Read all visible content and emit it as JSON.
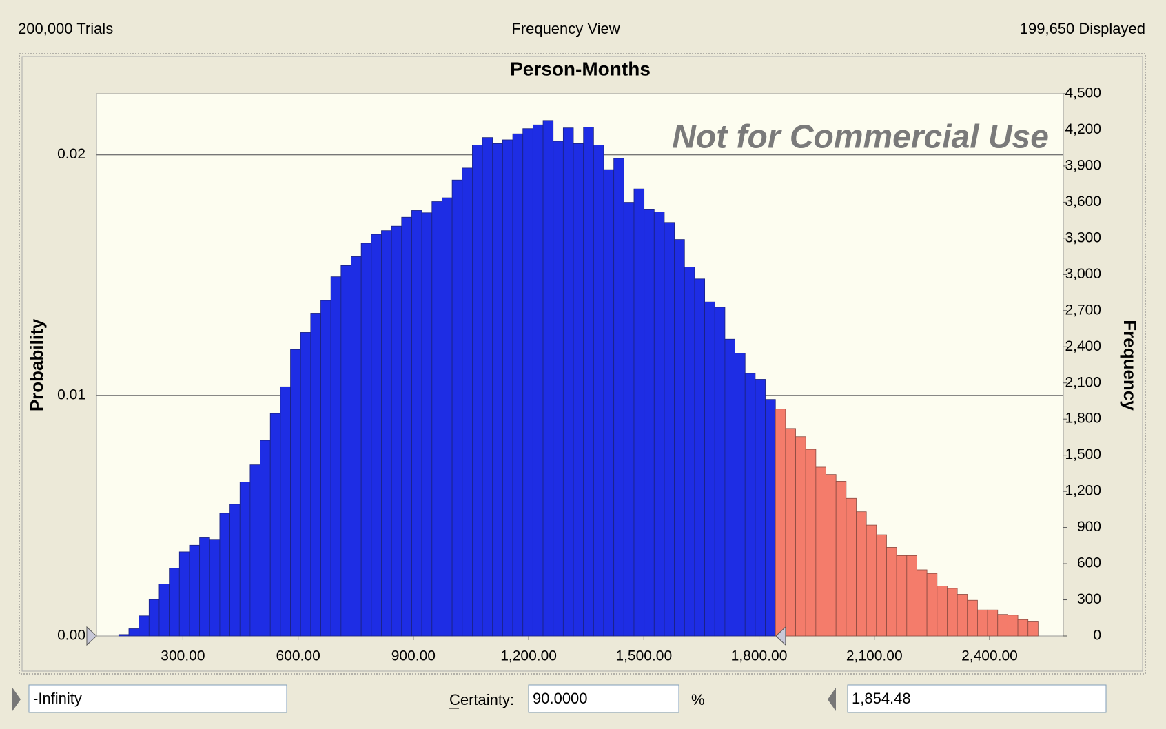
{
  "header": {
    "left": "200,000 Trials",
    "center": "Frequency View",
    "right": "199,650 Displayed"
  },
  "chart_data": {
    "type": "histogram",
    "title": "Person-Months",
    "annotation": "Not for Commercial Use",
    "ylabel": "Frequency",
    "y2label": "Probability",
    "bins": [
      133,
      159.3,
      185.6,
      211.9,
      238.2,
      264.5,
      290.8,
      317.1,
      343.4,
      369.7,
      396,
      422.3,
      448.6,
      474.9,
      501.2,
      527.5,
      553.8,
      580.1,
      606.4,
      632.7,
      659,
      685.3,
      711.6,
      737.9,
      764.2,
      790.5,
      816.8,
      843.1,
      869.4,
      895.7,
      922,
      948.3,
      974.6,
      1000.9,
      1027.2,
      1053.5,
      1079.8,
      1106.1,
      1132.4,
      1158.7,
      1185,
      1211.3,
      1237.6,
      1263.9,
      1290.2,
      1316.5,
      1342.8,
      1369.1,
      1395.4,
      1421.7,
      1448,
      1474.3,
      1500.6,
      1526.9,
      1553.2,
      1579.5,
      1605.8,
      1632.1,
      1658.4,
      1684.7,
      1711,
      1737.3,
      1763.6,
      1789.9,
      1816.2,
      1842.5,
      1868.8,
      1895.1,
      1921.4,
      1947.7,
      1974,
      2000.3,
      2026.6,
      2052.9,
      2079.2,
      2105.5,
      2131.8,
      2158.1,
      2184.4,
      2210.7,
      2237,
      2263.3,
      2289.6,
      2315.9,
      2342.2,
      2368.5,
      2394.8,
      2421.1,
      2447.4,
      2473.7,
      2500,
      2526.3
    ],
    "values": [
      12,
      60,
      167,
      302,
      432,
      562,
      698,
      753,
      815,
      802,
      1018,
      1093,
      1278,
      1420,
      1623,
      1846,
      2068,
      2377,
      2519,
      2679,
      2784,
      2981,
      3074,
      3148,
      3259,
      3333,
      3364,
      3401,
      3475,
      3531,
      3512,
      3605,
      3636,
      3784,
      3883,
      4074,
      4136,
      4086,
      4117,
      4167,
      4210,
      4241,
      4278,
      4105,
      4216,
      4086,
      4222,
      4074,
      3870,
      3963,
      3599,
      3710,
      3537,
      3519,
      3432,
      3290,
      3062,
      2963,
      2772,
      2728,
      2463,
      2346,
      2179,
      2130,
      1963,
      1883,
      1722,
      1654,
      1549,
      1401,
      1340,
      1284,
      1142,
      1031,
      920,
      840,
      735,
      667,
      667,
      549,
      519,
      414,
      395,
      346,
      296,
      216,
      216,
      179,
      173,
      136,
      123
    ],
    "color": "#1e2de4",
    "tail_color": "#f47c6b",
    "xlim": [
      75,
      2592
    ],
    "xticks": [
      {
        "value": 300,
        "label": "300.00"
      },
      {
        "value": 600,
        "label": "600.00"
      },
      {
        "value": 900,
        "label": "900.00"
      },
      {
        "value": 1200,
        "label": "1,200.00"
      },
      {
        "value": 1500,
        "label": "1,500.00"
      },
      {
        "value": 1800,
        "label": "1,800.00"
      },
      {
        "value": 2100,
        "label": "2,100.00"
      },
      {
        "value": 2400,
        "label": "2,400.00"
      }
    ],
    "ylim": [
      0,
      4500
    ],
    "yticks": [
      0,
      300,
      600,
      900,
      {
        "value": 1200,
        "label": "1,200"
      },
      {
        "value": 1500,
        "label": "1,500"
      },
      {
        "value": 1800,
        "label": "1,800"
      },
      {
        "value": 2100,
        "label": "2,100"
      },
      {
        "value": 2400,
        "label": "2,400"
      },
      {
        "value": 2700,
        "label": "2,700"
      },
      {
        "value": 3000,
        "label": "3,000"
      },
      {
        "value": 3300,
        "label": "3,300"
      },
      {
        "value": 3600,
        "label": "3,600"
      },
      {
        "value": 3900,
        "label": "3,900"
      },
      {
        "value": 4200,
        "label": "4,200"
      },
      {
        "value": 4500,
        "label": "4,500"
      }
    ],
    "y2lim": [
      0,
      0.02254
    ],
    "y2ticks": [
      {
        "value": 0,
        "label": "0.00"
      },
      0.01,
      0.02
    ],
    "grid": true
  },
  "controls": {
    "lower": "-Infinity",
    "certainty_label": "Certainty:",
    "certainty": "90.0000",
    "unit": "%",
    "upper": {
      "value": 1854.48,
      "label": "1,854.48"
    }
  }
}
